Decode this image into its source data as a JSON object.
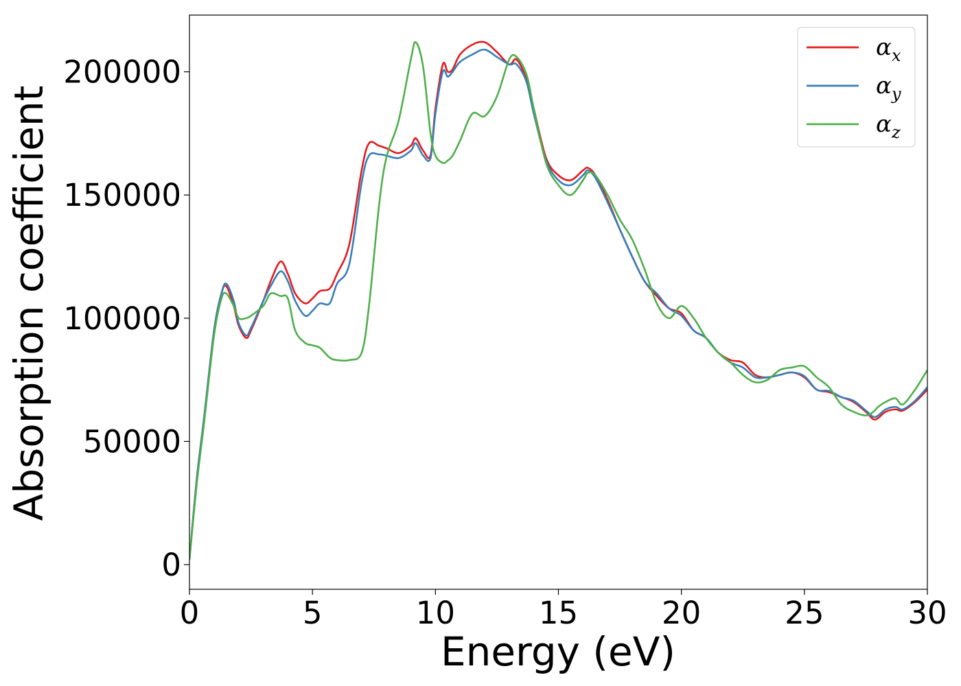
{
  "chart_data": {
    "type": "line",
    "title": "",
    "xlabel": "Energy (eV)",
    "ylabel": "Absorption coefficient",
    "xlim": [
      0,
      30
    ],
    "ylim": [
      -10000,
      223000
    ],
    "xticks": [
      0,
      5,
      10,
      15,
      20,
      25,
      30
    ],
    "xtick_labels": [
      "0",
      "5",
      "10",
      "15",
      "20",
      "25",
      "30"
    ],
    "yticks": [
      0,
      50000,
      100000,
      150000,
      200000
    ],
    "ytick_labels": [
      "0",
      "50000",
      "100000",
      "150000",
      "200000"
    ],
    "grid": false,
    "legend_position": "top-right",
    "x": [
      0,
      0.3,
      0.6,
      1.0,
      1.3,
      1.5,
      1.8,
      2.0,
      2.3,
      2.5,
      3.0,
      3.3,
      3.7,
      4.0,
      4.3,
      4.7,
      5.0,
      5.3,
      5.7,
      6.0,
      6.5,
      7.0,
      7.3,
      7.7,
      8.0,
      8.5,
      9.0,
      9.2,
      9.5,
      9.8,
      10.0,
      10.3,
      10.5,
      10.7,
      11.0,
      11.5,
      12.0,
      12.5,
      13.0,
      13.3,
      13.7,
      14.0,
      14.5,
      15.0,
      15.5,
      16.0,
      16.2,
      16.5,
      17.0,
      17.5,
      18.0,
      18.5,
      19.0,
      19.5,
      20.0,
      20.5,
      21.0,
      21.5,
      22.0,
      22.5,
      23.0,
      23.5,
      24.0,
      24.5,
      25.0,
      25.5,
      26.0,
      26.5,
      27.0,
      27.5,
      27.8,
      28.0,
      28.3,
      28.7,
      29.0,
      29.5,
      30.0
    ],
    "series": [
      {
        "name": "α_x",
        "color": "#e41a1c",
        "values": [
          2000,
          35000,
          60000,
          95000,
          110000,
          113000,
          105000,
          97000,
          92000,
          95000,
          107000,
          115000,
          123000,
          118000,
          110000,
          106000,
          108000,
          111000,
          112000,
          118000,
          130000,
          160000,
          171000,
          170000,
          169000,
          167000,
          170000,
          173000,
          168000,
          166000,
          185000,
          203000,
          200000,
          201000,
          207000,
          211000,
          212000,
          208000,
          203000,
          205000,
          197000,
          185000,
          165000,
          158000,
          156000,
          160000,
          161000,
          158000,
          148000,
          136000,
          125000,
          115000,
          109000,
          104000,
          102000,
          95000,
          92000,
          86000,
          83000,
          82000,
          77000,
          76000,
          77000,
          78000,
          76000,
          71000,
          70000,
          68000,
          66000,
          62000,
          59000,
          59500,
          62000,
          63000,
          62500,
          66000,
          71000
        ]
      },
      {
        "name": "α_y",
        "color": "#377eb8",
        "values": [
          2000,
          35000,
          60000,
          95000,
          110000,
          114000,
          107000,
          98000,
          93000,
          96000,
          107000,
          113000,
          119000,
          115000,
          107000,
          101000,
          103000,
          106000,
          106000,
          114000,
          122000,
          155000,
          166000,
          166500,
          166000,
          165000,
          168000,
          171000,
          166000,
          165000,
          183000,
          200000,
          198000,
          200000,
          204000,
          207000,
          209000,
          206000,
          203000,
          203000,
          196000,
          183000,
          164000,
          156000,
          154000,
          158000,
          160000,
          157000,
          147000,
          136000,
          125000,
          115000,
          110000,
          104000,
          101000,
          95000,
          92000,
          86000,
          82000,
          80000,
          76000,
          76000,
          77000,
          78000,
          76500,
          71000,
          70500,
          68000,
          66500,
          62500,
          60000,
          60500,
          63000,
          64000,
          63000,
          66500,
          72000
        ]
      },
      {
        "name": "α_z",
        "color": "#4daf4a",
        "values": [
          2000,
          33000,
          58000,
          93000,
          108000,
          110000,
          105000,
          100000,
          100000,
          101000,
          105000,
          110000,
          109000,
          108000,
          95000,
          90000,
          89000,
          88000,
          84000,
          83000,
          83000,
          86000,
          105000,
          145000,
          165000,
          180000,
          205000,
          212000,
          202000,
          175000,
          166000,
          163000,
          164000,
          166000,
          172000,
          183000,
          182000,
          190000,
          205000,
          206000,
          199000,
          185000,
          163000,
          154000,
          150000,
          156000,
          159000,
          158000,
          150000,
          140000,
          132000,
          120000,
          106000,
          100000,
          105000,
          100000,
          92000,
          86000,
          82000,
          77000,
          74000,
          75000,
          79000,
          80000,
          80500,
          76000,
          72000,
          65000,
          62000,
          60500,
          62000,
          64000,
          66000,
          67500,
          65000,
          71000,
          79000
        ]
      }
    ],
    "legend": [
      {
        "base": "α",
        "sub": "x",
        "color": "#e41a1c"
      },
      {
        "base": "α",
        "sub": "y",
        "color": "#377eb8"
      },
      {
        "base": "α",
        "sub": "z",
        "color": "#4daf4a"
      }
    ]
  }
}
